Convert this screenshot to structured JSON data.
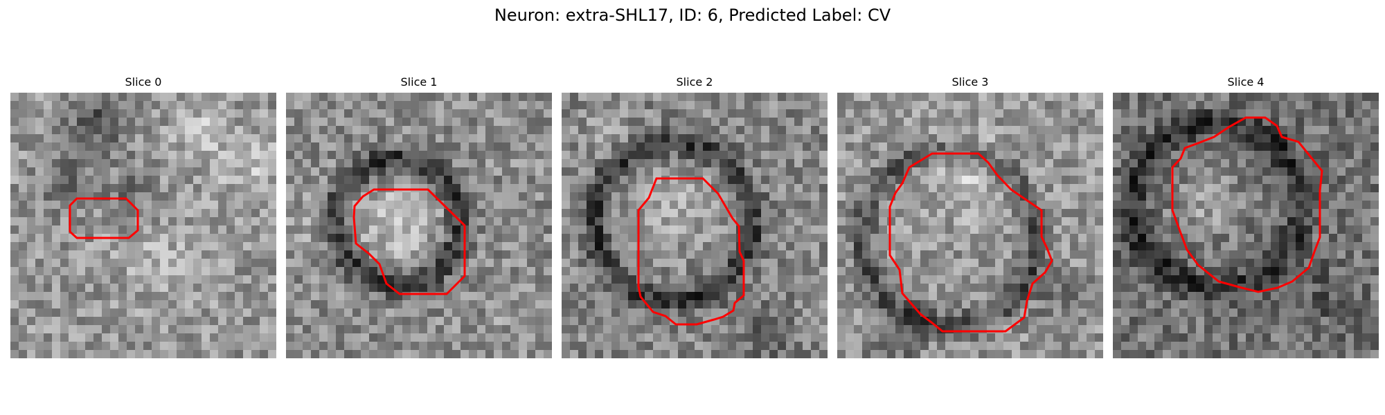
{
  "figure": {
    "title": "Neuron: extra-SHL17, ID: 6, Predicted Label: CV"
  },
  "colors": {
    "contour": "#ff0000",
    "background": "#ffffff"
  },
  "slices": [
    {
      "title": "Slice 0"
    },
    {
      "title": "Slice 1"
    },
    {
      "title": "Slice 2"
    },
    {
      "title": "Slice 3"
    },
    {
      "title": "Slice 4"
    }
  ]
}
